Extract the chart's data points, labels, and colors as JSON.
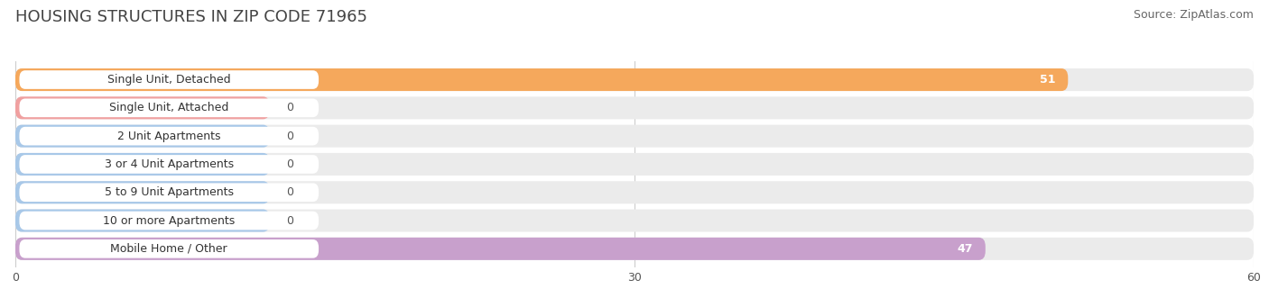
{
  "title": "HOUSING STRUCTURES IN ZIP CODE 71965",
  "source": "Source: ZipAtlas.com",
  "categories": [
    "Single Unit, Detached",
    "Single Unit, Attached",
    "2 Unit Apartments",
    "3 or 4 Unit Apartments",
    "5 to 9 Unit Apartments",
    "10 or more Apartments",
    "Mobile Home / Other"
  ],
  "values": [
    51,
    0,
    0,
    0,
    0,
    0,
    47
  ],
  "bar_colors": [
    "#F5A85C",
    "#F0A0A0",
    "#A8C8E8",
    "#A8C8E8",
    "#A8C8E8",
    "#A8C8E8",
    "#C8A0CC"
  ],
  "xlim": [
    0,
    60
  ],
  "xticks": [
    0,
    30,
    60
  ],
  "background_color": "#ffffff",
  "bar_background_color": "#ebebeb",
  "row_background_color": "#f5f5f5",
  "title_fontsize": 13,
  "source_fontsize": 9,
  "label_fontsize": 9,
  "value_fontsize": 9,
  "value_color_inside": "#ffffff",
  "value_color_outside": "#555555"
}
